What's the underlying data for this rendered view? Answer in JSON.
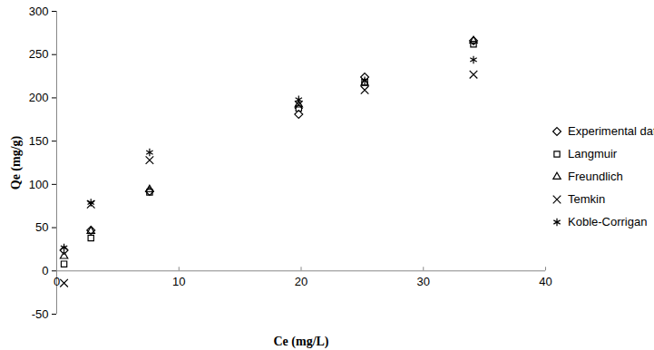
{
  "chart_data": {
    "type": "scatter",
    "x_label": "Ce (mg/L)",
    "y_label": "Qe (mg/g)",
    "x": [
      0.6,
      2.8,
      7.6,
      19.8,
      25.2,
      34.1
    ],
    "series": [
      {
        "name": "Experimental data",
        "color": "#000000",
        "marker": "diamond",
        "values": [
          24,
          47,
          92,
          181,
          224,
          266
        ]
      },
      {
        "name": "Langmuir",
        "color": "#000000",
        "marker": "square",
        "values": [
          8,
          38,
          91,
          188,
          218,
          262
        ]
      },
      {
        "name": "Freundlich",
        "color": "#000000",
        "marker": "triangle",
        "values": [
          17,
          46,
          94,
          192,
          217,
          266
        ]
      },
      {
        "name": "Temkin",
        "color": "#000000",
        "marker": "times",
        "values": [
          -14,
          77,
          128,
          192,
          209,
          227
        ]
      },
      {
        "name": "Koble-Corrigan",
        "color": "#000000",
        "marker": "asterisk",
        "values": [
          27,
          79,
          137,
          198,
          220,
          244
        ]
      }
    ],
    "xlim": [
      0,
      40
    ],
    "xticks": [
      0,
      10,
      20,
      30,
      40
    ],
    "ylim": [
      -50,
      300
    ],
    "yticks": [
      -50,
      0,
      50,
      100,
      150,
      200,
      250,
      300
    ],
    "grid": false,
    "legend": "right"
  }
}
